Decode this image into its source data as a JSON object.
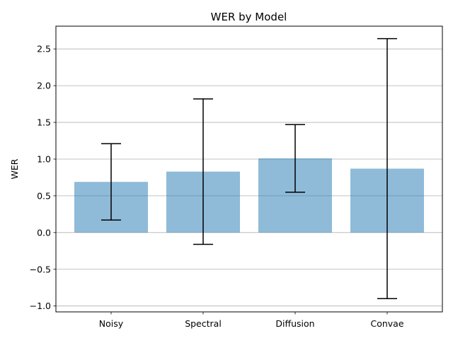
{
  "chart_data": {
    "type": "bar",
    "title": "WER by Model",
    "xlabel": "",
    "ylabel": "WER",
    "categories": [
      "Noisy",
      "Spectral",
      "Diffusion",
      "Convae"
    ],
    "series": [
      {
        "values": [
          0.69,
          0.83,
          1.01,
          0.87
        ],
        "error": [
          0.52,
          0.99,
          0.46,
          1.77
        ]
      }
    ],
    "ylim": [
      -1.08,
      2.81
    ],
    "yticks": [
      -1.0,
      -0.5,
      0.0,
      0.5,
      1.0,
      1.5,
      2.0,
      2.5
    ],
    "ytick_labels": [
      "−1.0",
      "−0.5",
      "0.0",
      "0.5",
      "1.0",
      "1.5",
      "2.0",
      "2.5"
    ],
    "grid": "y",
    "legend": "none",
    "colors": {
      "bar": "#1f77b4",
      "bar_opacity": 0.5,
      "error_bar": "#000000",
      "grid": "#b0b0b0"
    }
  }
}
